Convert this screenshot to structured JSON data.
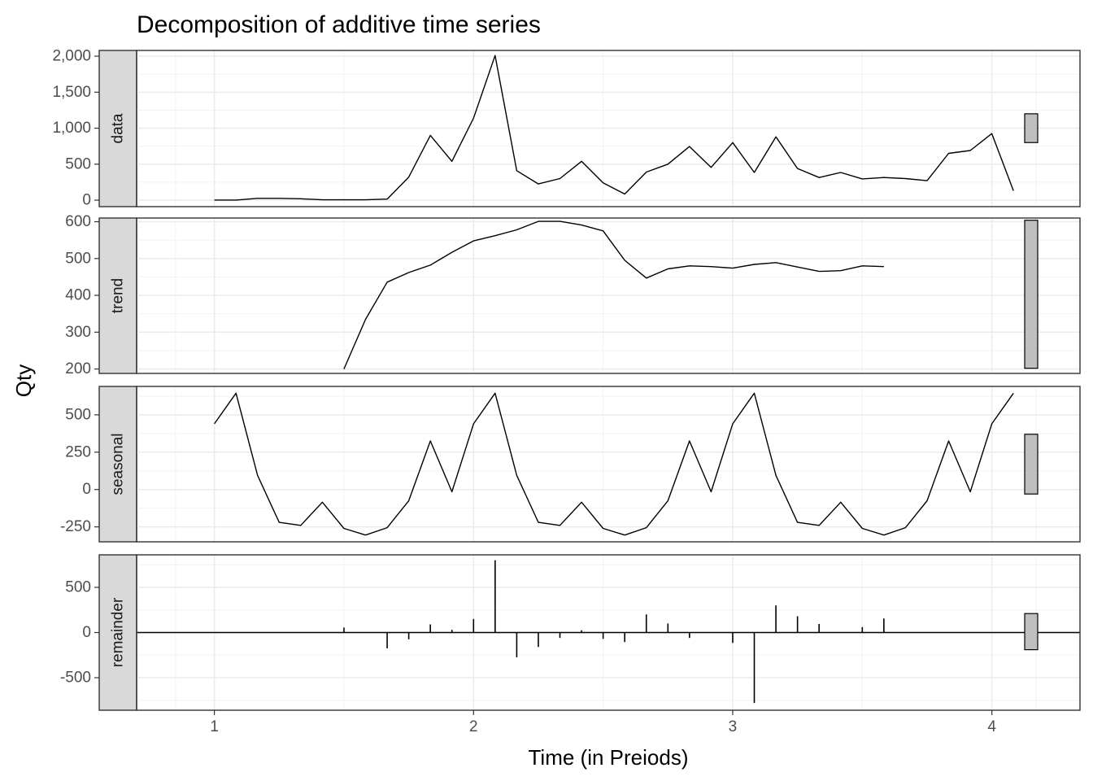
{
  "chart_data": {
    "type": "line",
    "title": "Decomposition of additive time series",
    "xlabel": "Time (in Preiods)",
    "ylabel": "Qty",
    "x_ticks": [
      1,
      2,
      3,
      4
    ],
    "xlim": [
      0.7,
      4.34
    ],
    "grid": true,
    "theme": "bw",
    "panels": [
      {
        "name": "data",
        "ylim": [
          -90,
          2080
        ],
        "y_ticks": [
          0,
          500,
          1000,
          1500,
          2000
        ],
        "y_tick_labels": [
          "0",
          "500",
          "1,000",
          "1,500",
          "2,000"
        ],
        "x": [
          1,
          1.0833,
          1.1667,
          1.25,
          1.3333,
          1.4167,
          1.5,
          1.5833,
          1.6667,
          1.75,
          1.8333,
          1.9167,
          2,
          2.0833,
          2.1667,
          2.25,
          2.3333,
          2.4167,
          2.5,
          2.5833,
          2.6667,
          2.75,
          2.8333,
          2.9167,
          3,
          3.0833,
          3.1667,
          3.25,
          3.3333,
          3.4167,
          3.5,
          3.5833,
          3.6667,
          3.75,
          3.8333,
          3.9167,
          4,
          4.0833
        ],
        "values": [
          2,
          2,
          25,
          25,
          20,
          5,
          5,
          5,
          15,
          320,
          900,
          540,
          1140,
          2010,
          410,
          225,
          300,
          540,
          240,
          85,
          390,
          500,
          745,
          455,
          800,
          385,
          880,
          440,
          315,
          385,
          295,
          315,
          300,
          270,
          650,
          690,
          925,
          130
        ],
        "scale_bar": [
          800,
          1200
        ]
      },
      {
        "name": "trend",
        "ylim": [
          188,
          610
        ],
        "y_ticks": [
          200,
          300,
          400,
          500,
          600
        ],
        "y_tick_labels": [
          "200",
          "300",
          "400",
          "500",
          "600"
        ],
        "x": [
          1.5,
          1.5833,
          1.6667,
          1.75,
          1.8333,
          1.9167,
          2,
          2.0833,
          2.1667,
          2.25,
          2.3333,
          2.4167,
          2.5,
          2.5833,
          2.6667,
          2.75,
          2.8333,
          2.9167,
          3,
          3.0833,
          3.1667,
          3.25,
          3.3333,
          3.4167,
          3.5,
          3.5833
        ],
        "values": [
          200,
          335,
          436,
          462,
          482,
          517,
          548,
          562,
          578,
          601,
          601,
          591,
          575,
          495,
          447,
          472,
          480,
          478,
          474,
          484,
          489,
          477,
          465,
          467,
          480,
          478
        ],
        "scale_bar": [
          202,
          604
        ]
      },
      {
        "name": "seasonal",
        "ylim": [
          -350,
          690
        ],
        "y_ticks": [
          -250,
          0,
          250,
          500
        ],
        "y_tick_labels": [
          "-250",
          "0",
          "250",
          "500"
        ],
        "x": [
          1,
          1.0833,
          1.1667,
          1.25,
          1.3333,
          1.4167,
          1.5,
          1.5833,
          1.6667,
          1.75,
          1.8333,
          1.9167,
          2,
          2.0833,
          2.1667,
          2.25,
          2.3333,
          2.4167,
          2.5,
          2.5833,
          2.6667,
          2.75,
          2.8333,
          2.9167,
          3,
          3.0833,
          3.1667,
          3.25,
          3.3333,
          3.4167,
          3.5,
          3.5833,
          3.6667,
          3.75,
          3.8333,
          3.9167,
          4,
          4.0833
        ],
        "values": [
          440,
          645,
          95,
          -220,
          -240,
          -85,
          -260,
          -305,
          -255,
          -75,
          325,
          -15,
          440,
          645,
          95,
          -220,
          -240,
          -85,
          -260,
          -305,
          -255,
          -75,
          325,
          -15,
          440,
          645,
          95,
          -220,
          -240,
          -85,
          -260,
          -305,
          -255,
          -75,
          325,
          -15,
          440,
          645
        ],
        "scale_bar": [
          -30,
          370
        ]
      },
      {
        "name": "remainder",
        "ylim": [
          -860,
          860
        ],
        "y_ticks": [
          -500,
          0,
          500
        ],
        "y_tick_labels": [
          "-500",
          "0",
          "500"
        ],
        "x": [
          1.5,
          1.5833,
          1.6667,
          1.75,
          1.8333,
          1.9167,
          2,
          2.0833,
          2.1667,
          2.25,
          2.3333,
          2.4167,
          2.5,
          2.5833,
          2.6667,
          2.75,
          2.8333,
          2.9167,
          3,
          3.0833,
          3.1667,
          3.25,
          3.3333,
          3.4167,
          3.5,
          3.5833
        ],
        "values": [
          55,
          0,
          -175,
          -75,
          90,
          30,
          150,
          800,
          -275,
          -160,
          -60,
          25,
          -70,
          -105,
          200,
          100,
          -60,
          0,
          -115,
          -780,
          300,
          180,
          95,
          0,
          60,
          155
        ],
        "scale_bar": [
          -190,
          210
        ]
      }
    ]
  }
}
